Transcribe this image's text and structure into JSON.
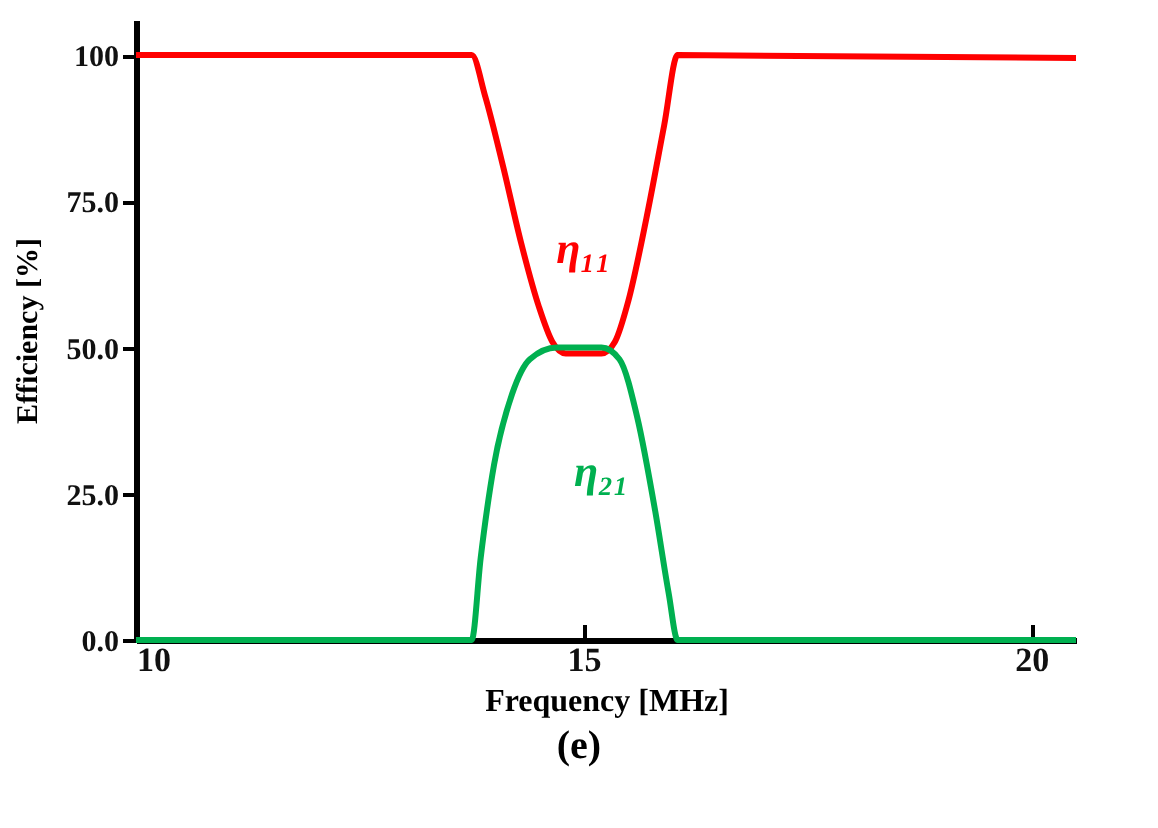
{
  "chart_data": {
    "type": "line",
    "xlabel": "Frequency [MHz]",
    "ylabel": "Efficiency [%]",
    "annotations": [
      "(e)"
    ],
    "xlim": [
      10,
      20.5
    ],
    "xticks": [
      10,
      15,
      20
    ],
    "ylim": [
      0,
      106
    ],
    "yticks": [
      {
        "value": 0,
        "label": "0.0"
      },
      {
        "value": 25,
        "label": "25.0"
      },
      {
        "value": 50,
        "label": "50.0"
      },
      {
        "value": 75,
        "label": "75.0"
      },
      {
        "value": 100,
        "label": "100"
      }
    ],
    "grid": false,
    "legend": false,
    "marker": "none",
    "line_style": "solid",
    "series": [
      {
        "name": "η₁₁",
        "color": "#ff0000",
        "x": [
          10,
          13.75,
          13.9,
          14.1,
          14.3,
          14.5,
          14.65,
          14.8,
          15,
          15.2,
          15.35,
          15.5,
          15.7,
          15.9,
          16.05,
          20.5
        ],
        "values": [
          100,
          100,
          93,
          81,
          68,
          57,
          51,
          49,
          49,
          49,
          51,
          58,
          72,
          88,
          100,
          99.5
        ]
      },
      {
        "name": "η₂₁",
        "color": "#00b050",
        "x": [
          10,
          13.75,
          13.85,
          14.0,
          14.2,
          14.4,
          14.7,
          15.2,
          15.4,
          15.6,
          15.8,
          15.95,
          16.05,
          20.5
        ],
        "values": [
          0,
          0,
          14,
          30,
          42,
          48,
          50,
          50,
          48,
          38,
          22,
          8,
          0,
          0
        ]
      }
    ]
  }
}
